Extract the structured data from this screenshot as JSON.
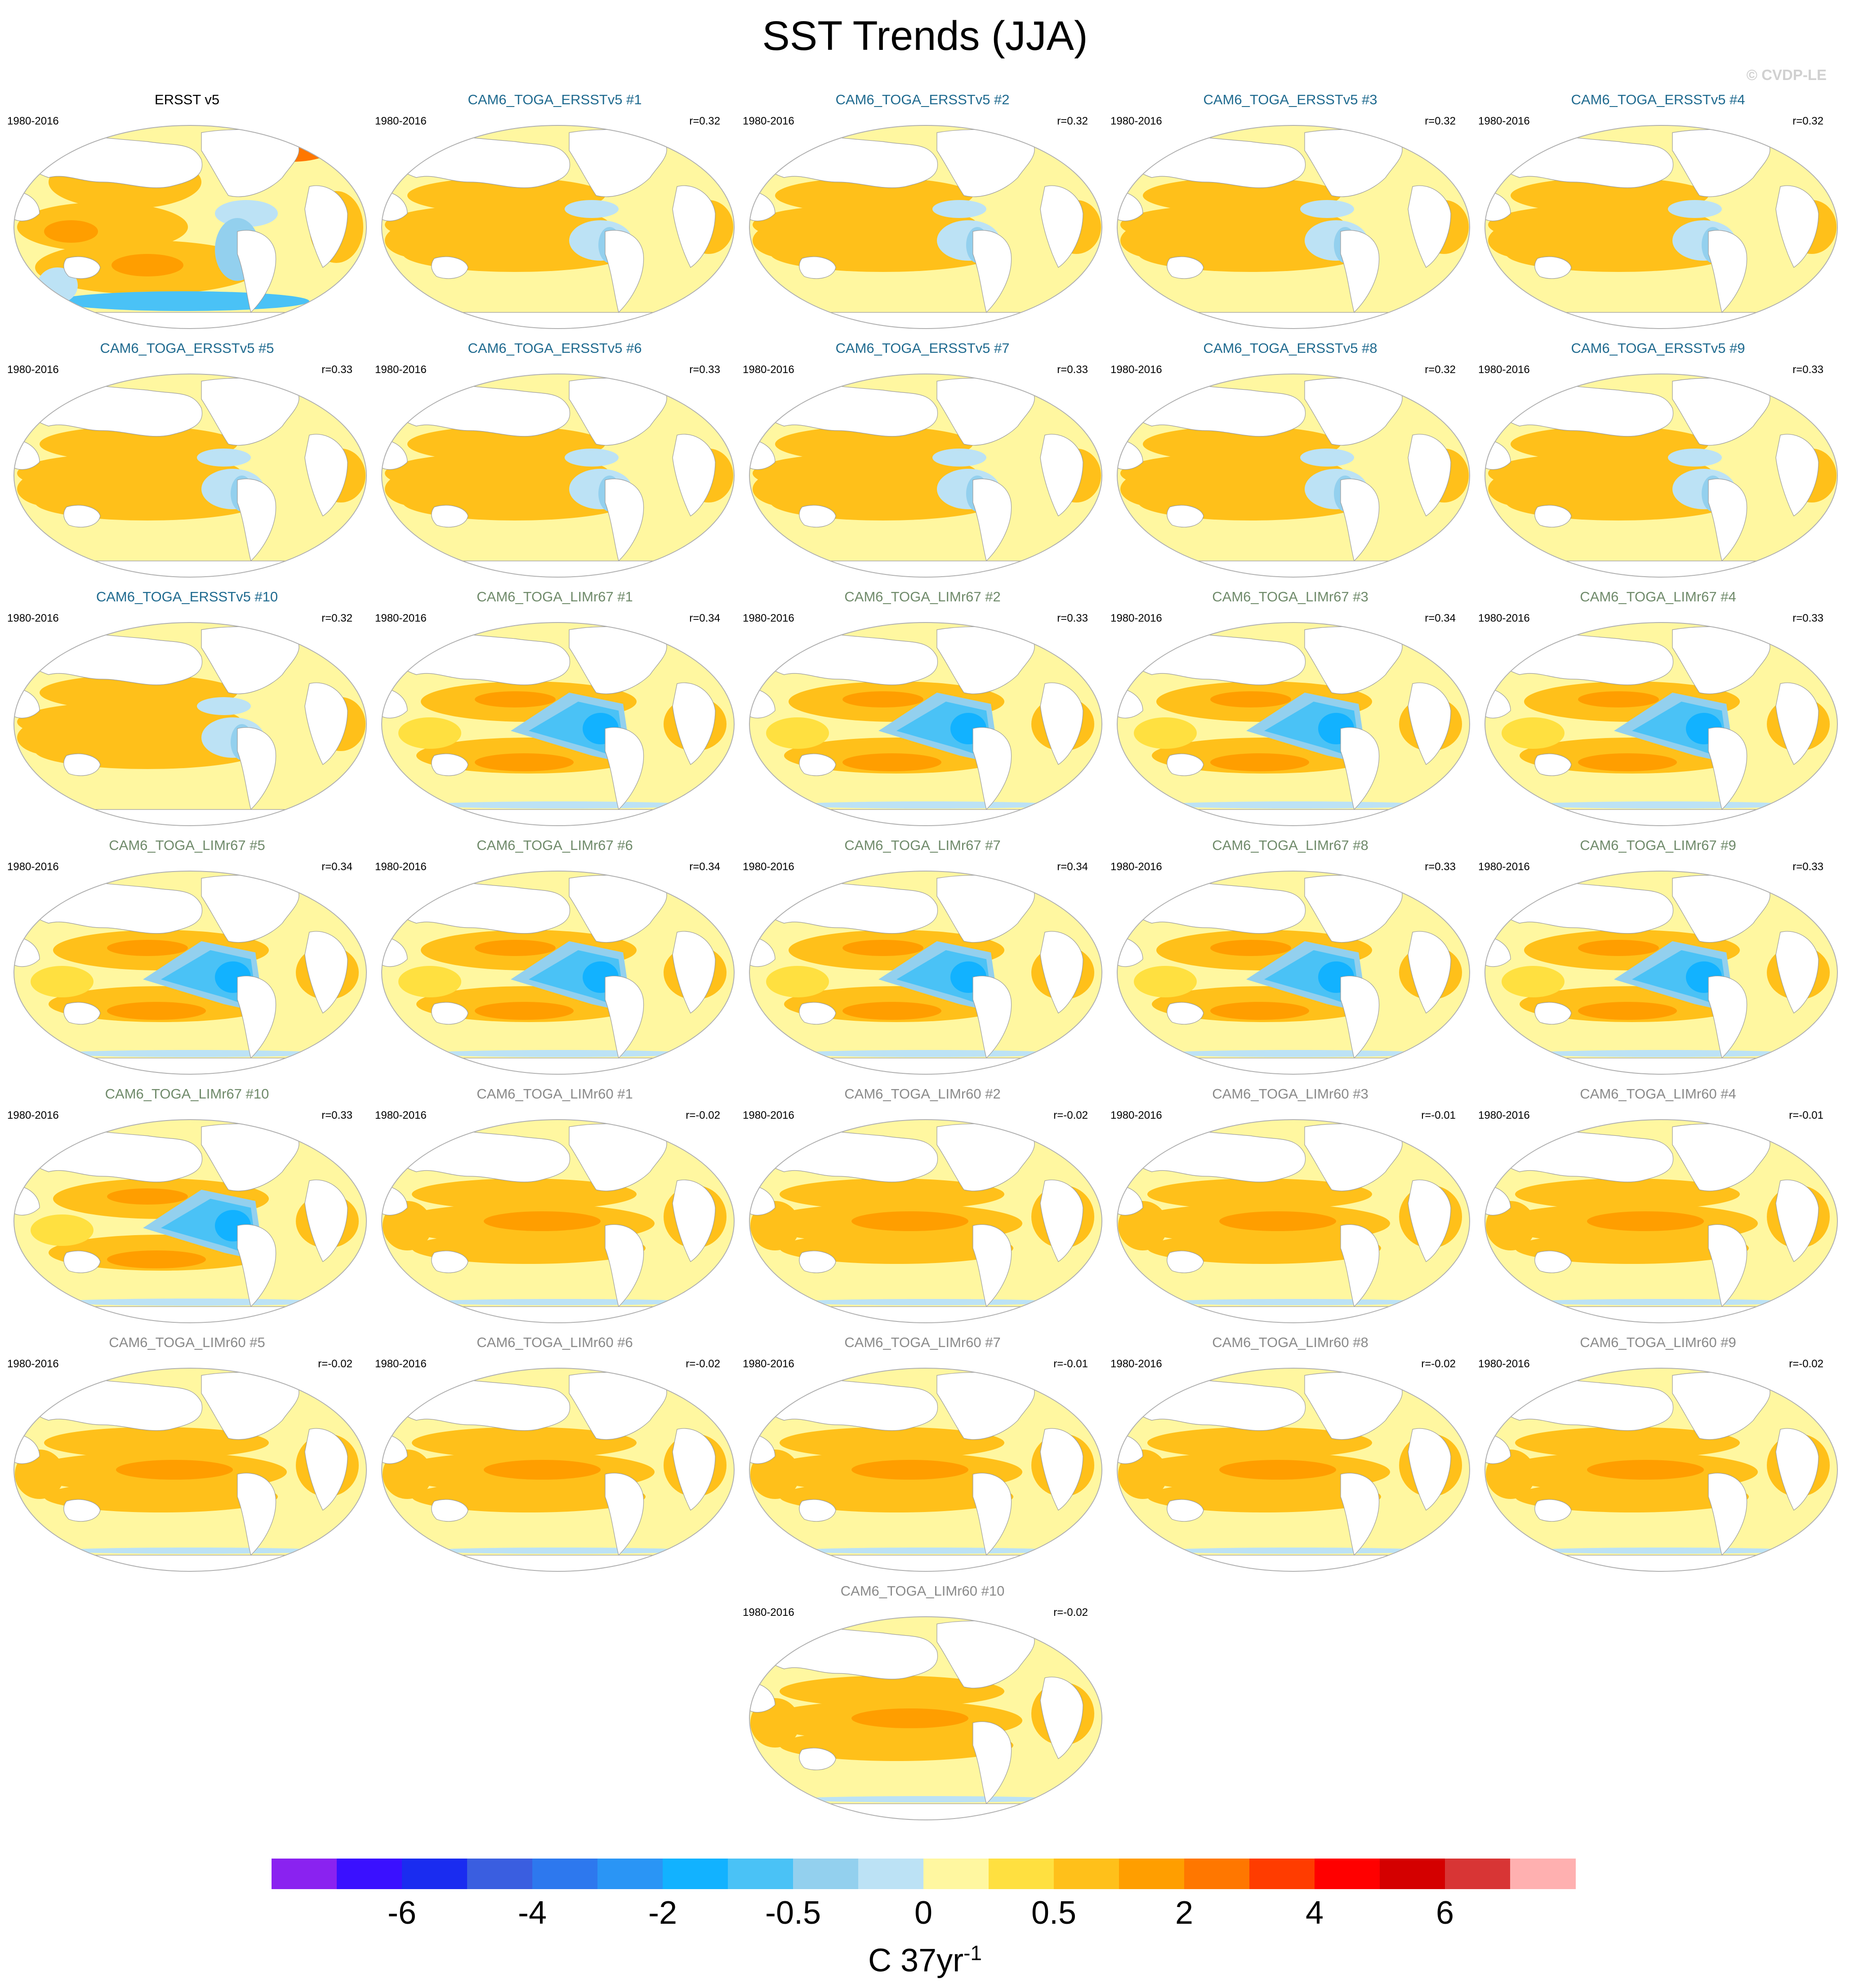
{
  "title": "SST Trends (JJA)",
  "watermark": "© CVDP-LE",
  "colors": {
    "group_obs": "#000000",
    "group_ersst": "#1f6a8f",
    "group_lim67": "#6f8a6a",
    "group_lim60": "#8a8a8a"
  },
  "panels": [
    {
      "title": "ERSST v5",
      "period": "1980-2016",
      "r": "",
      "group": "obs"
    },
    {
      "title": "CAM6_TOGA_ERSSTv5 #1",
      "period": "1980-2016",
      "r": "r=0.32",
      "group": "ersst"
    },
    {
      "title": "CAM6_TOGA_ERSSTv5 #2",
      "period": "1980-2016",
      "r": "r=0.32",
      "group": "ersst"
    },
    {
      "title": "CAM6_TOGA_ERSSTv5 #3",
      "period": "1980-2016",
      "r": "r=0.32",
      "group": "ersst"
    },
    {
      "title": "CAM6_TOGA_ERSSTv5 #4",
      "period": "1980-2016",
      "r": "r=0.32",
      "group": "ersst"
    },
    {
      "title": "CAM6_TOGA_ERSSTv5 #5",
      "period": "1980-2016",
      "r": "r=0.33",
      "group": "ersst"
    },
    {
      "title": "CAM6_TOGA_ERSSTv5 #6",
      "period": "1980-2016",
      "r": "r=0.33",
      "group": "ersst"
    },
    {
      "title": "CAM6_TOGA_ERSSTv5 #7",
      "period": "1980-2016",
      "r": "r=0.33",
      "group": "ersst"
    },
    {
      "title": "CAM6_TOGA_ERSSTv5 #8",
      "period": "1980-2016",
      "r": "r=0.32",
      "group": "ersst"
    },
    {
      "title": "CAM6_TOGA_ERSSTv5 #9",
      "period": "1980-2016",
      "r": "r=0.33",
      "group": "ersst"
    },
    {
      "title": "CAM6_TOGA_ERSSTv5 #10",
      "period": "1980-2016",
      "r": "r=0.32",
      "group": "ersst"
    },
    {
      "title": "CAM6_TOGA_LIMr67 #1",
      "period": "1980-2016",
      "r": "r=0.34",
      "group": "lim67"
    },
    {
      "title": "CAM6_TOGA_LIMr67 #2",
      "period": "1980-2016",
      "r": "r=0.33",
      "group": "lim67"
    },
    {
      "title": "CAM6_TOGA_LIMr67 #3",
      "period": "1980-2016",
      "r": "r=0.34",
      "group": "lim67"
    },
    {
      "title": "CAM6_TOGA_LIMr67 #4",
      "period": "1980-2016",
      "r": "r=0.33",
      "group": "lim67"
    },
    {
      "title": "CAM6_TOGA_LIMr67 #5",
      "period": "1980-2016",
      "r": "r=0.34",
      "group": "lim67"
    },
    {
      "title": "CAM6_TOGA_LIMr67 #6",
      "period": "1980-2016",
      "r": "r=0.34",
      "group": "lim67"
    },
    {
      "title": "CAM6_TOGA_LIMr67 #7",
      "period": "1980-2016",
      "r": "r=0.34",
      "group": "lim67"
    },
    {
      "title": "CAM6_TOGA_LIMr67 #8",
      "period": "1980-2016",
      "r": "r=0.33",
      "group": "lim67"
    },
    {
      "title": "CAM6_TOGA_LIMr67 #9",
      "period": "1980-2016",
      "r": "r=0.33",
      "group": "lim67"
    },
    {
      "title": "CAM6_TOGA_LIMr67 #10",
      "period": "1980-2016",
      "r": "r=0.33",
      "group": "lim67"
    },
    {
      "title": "CAM6_TOGA_LIMr60 #1",
      "period": "1980-2016",
      "r": "r=-0.02",
      "group": "lim60"
    },
    {
      "title": "CAM6_TOGA_LIMr60 #2",
      "period": "1980-2016",
      "r": "r=-0.02",
      "group": "lim60"
    },
    {
      "title": "CAM6_TOGA_LIMr60 #3",
      "period": "1980-2016",
      "r": "r=-0.01",
      "group": "lim60"
    },
    {
      "title": "CAM6_TOGA_LIMr60 #4",
      "period": "1980-2016",
      "r": "r=-0.01",
      "group": "lim60"
    },
    {
      "title": "CAM6_TOGA_LIMr60 #5",
      "period": "1980-2016",
      "r": "r=-0.02",
      "group": "lim60"
    },
    {
      "title": "CAM6_TOGA_LIMr60 #6",
      "period": "1980-2016",
      "r": "r=-0.02",
      "group": "lim60"
    },
    {
      "title": "CAM6_TOGA_LIMr60 #7",
      "period": "1980-2016",
      "r": "r=-0.01",
      "group": "lim60"
    },
    {
      "title": "CAM6_TOGA_LIMr60 #8",
      "period": "1980-2016",
      "r": "r=-0.02",
      "group": "lim60"
    },
    {
      "title": "CAM6_TOGA_LIMr60 #9",
      "period": "1980-2016",
      "r": "r=-0.02",
      "group": "lim60"
    },
    {
      "title": "CAM6_TOGA_LIMr60 #10",
      "period": "1980-2016",
      "r": "r=-0.02",
      "group": "lim60"
    }
  ],
  "colorbar": {
    "colors": [
      "#8a22f0",
      "#3a10ff",
      "#1a2cf0",
      "#3a5ee0",
      "#2d78ee",
      "#2a95f5",
      "#12b2ff",
      "#4ac2f6",
      "#93d0ee",
      "#bce2f5",
      "#fff7a0",
      "#ffe040",
      "#ffc01a",
      "#ff9e00",
      "#ff7700",
      "#ff3c00",
      "#ff0000",
      "#d40000",
      "#d83535",
      "#ffb0b0"
    ],
    "labels": [
      "-6",
      "-4",
      "-2",
      "-0.5",
      "0",
      "0.5",
      "2",
      "4",
      "6"
    ],
    "units_base": "C 37yr",
    "units_sup": "-1"
  }
}
